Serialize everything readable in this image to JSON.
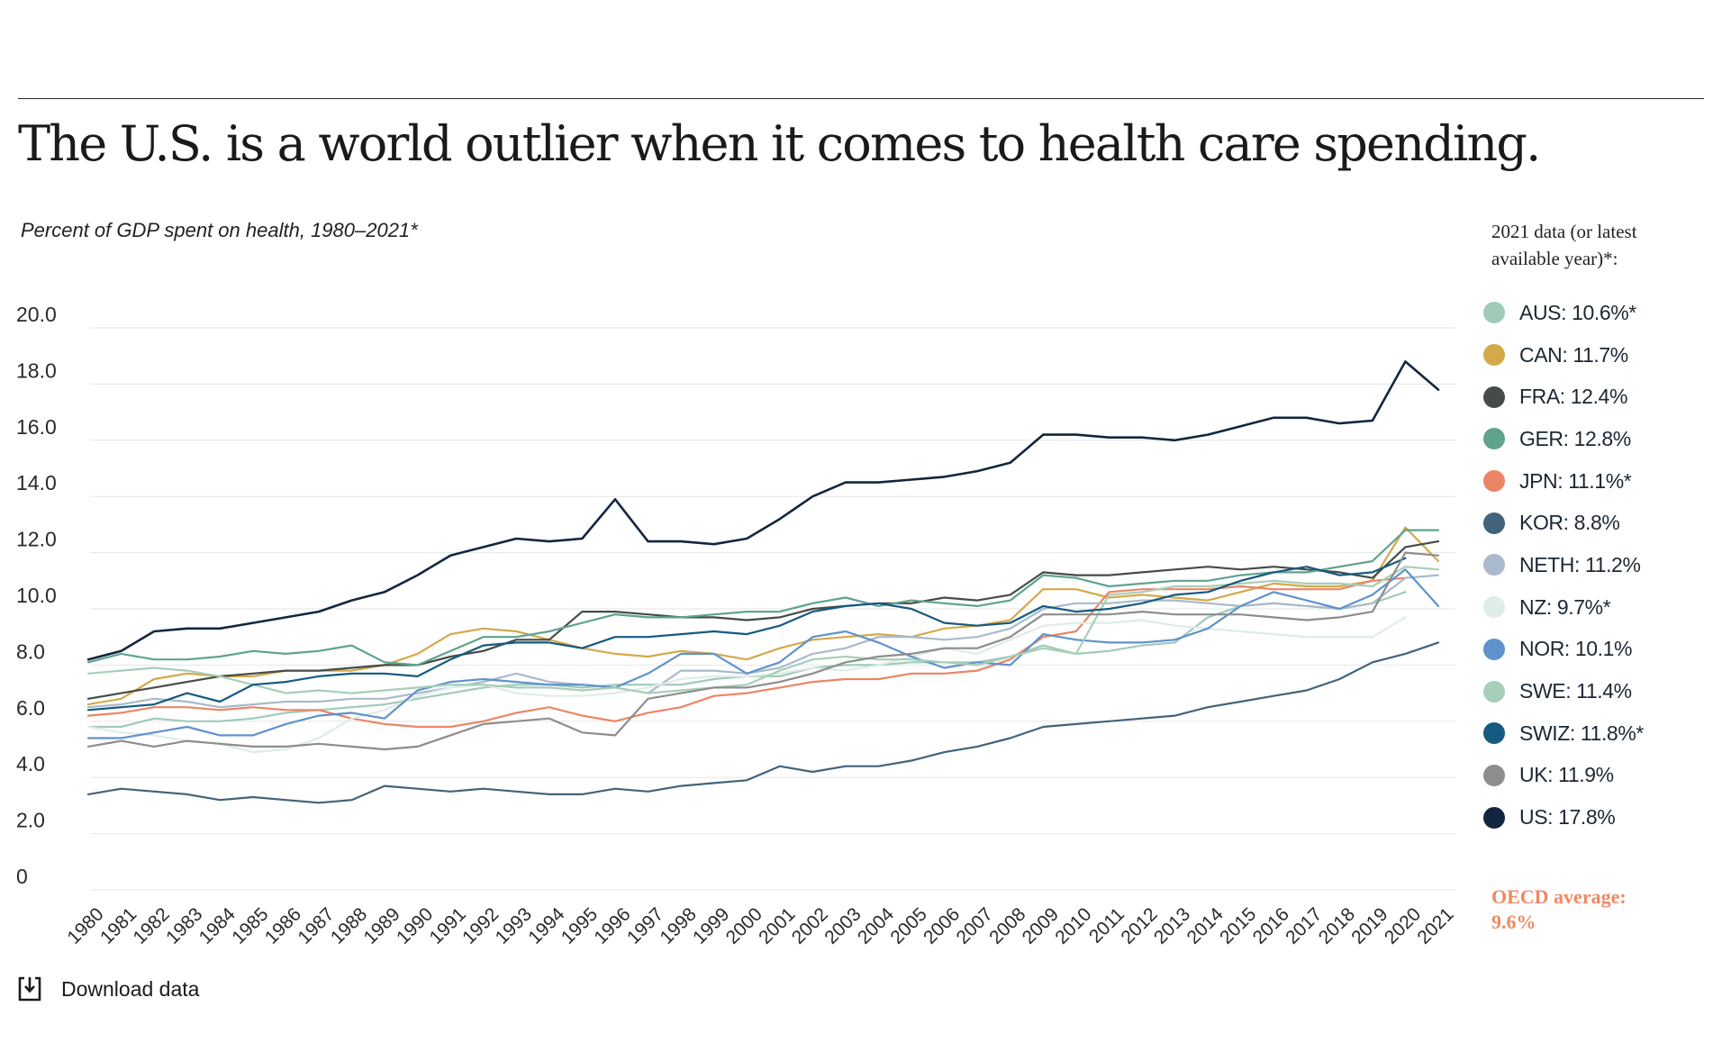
{
  "headline": "The U.S. is a world outlier when it comes to health care spending.",
  "subtitle": "Percent of GDP spent on health, 1980–2021*",
  "legend": {
    "title_line1": "2021 data (or latest",
    "title_line2": "available year)*:",
    "items": [
      {
        "label": "AUS: 10.6%*",
        "color": "#9fcbb8"
      },
      {
        "label": "CAN: 11.7%",
        "color": "#d4a94a"
      },
      {
        "label": "FRA: 12.4%",
        "color": "#454b48"
      },
      {
        "label": "GER: 12.8%",
        "color": "#5fa38e"
      },
      {
        "label": "JPN: 11.1%*",
        "color": "#ec8565"
      },
      {
        "label": "KOR: 8.8%",
        "color": "#42637a"
      },
      {
        "label": "NETH: 11.2%",
        "color": "#a8bacb"
      },
      {
        "label": "NZ: 9.7%*",
        "color": "#dfece7"
      },
      {
        "label": "NOR: 10.1%",
        "color": "#5f92cc"
      },
      {
        "label": "SWE: 11.4%",
        "color": "#a7ceb8"
      },
      {
        "label": "SWIZ: 11.8%*",
        "color": "#155a80"
      },
      {
        "label": "UK: 11.9%",
        "color": "#8d8d8d"
      },
      {
        "label": "US: 17.8%",
        "color": "#13263f"
      }
    ]
  },
  "oecd_note": {
    "line1": "OECD average:",
    "line2": "9.6%",
    "color": "#ee8a64"
  },
  "download": {
    "label": "Download data",
    "icon": "download-icon"
  },
  "chart_data": {
    "type": "line",
    "title": "The U.S. is a world outlier when it comes to health care spending.",
    "subtitle": "Percent of GDP spent on health, 1980–2021*",
    "xlabel": "",
    "ylabel": "",
    "ylim": [
      0,
      20
    ],
    "yticks": [
      0,
      2,
      4,
      6,
      8,
      10,
      12,
      14,
      16,
      18,
      20
    ],
    "ytick_labels": [
      "0",
      "2.0",
      "4.0",
      "6.0",
      "8.0",
      "10.0",
      "12.0",
      "14.0",
      "16.0",
      "18.0",
      "20.0"
    ],
    "grid": true,
    "legend_position": "right",
    "x": [
      "1980",
      "1981",
      "1982",
      "1983",
      "1984",
      "1985",
      "1986",
      "1987",
      "1988",
      "1989",
      "1990",
      "1991",
      "1992",
      "1993",
      "1994",
      "1995",
      "1996",
      "1997",
      "1998",
      "1999",
      "2000",
      "2001",
      "2002",
      "2003",
      "2004",
      "2005",
      "2006",
      "2007",
      "2008",
      "2009",
      "2010",
      "2011",
      "2012",
      "2013",
      "2014",
      "2015",
      "2016",
      "2017",
      "2018",
      "2019",
      "2020",
      "2021"
    ],
    "series": [
      {
        "name": "AUS",
        "color": "#9fcbb8",
        "values": [
          5.8,
          5.8,
          6.1,
          6.0,
          6.0,
          6.1,
          6.3,
          6.4,
          6.5,
          6.6,
          6.8,
          7.0,
          7.2,
          7.3,
          7.3,
          7.2,
          7.3,
          7.3,
          7.3,
          7.5,
          7.6,
          7.6,
          7.9,
          8.0,
          8.0,
          8.1,
          8.1,
          8.1,
          8.3,
          8.7,
          8.4,
          8.5,
          8.7,
          8.8,
          9.7,
          10.1,
          10.2,
          10.1,
          10.0,
          10.2,
          10.6,
          null
        ]
      },
      {
        "name": "CAN",
        "color": "#d4a94a",
        "values": [
          6.6,
          6.8,
          7.5,
          7.7,
          7.6,
          7.6,
          7.8,
          7.8,
          7.8,
          8.0,
          8.4,
          9.1,
          9.3,
          9.2,
          8.9,
          8.6,
          8.4,
          8.3,
          8.5,
          8.4,
          8.2,
          8.6,
          8.9,
          9.0,
          9.1,
          9.0,
          9.3,
          9.4,
          9.6,
          10.7,
          10.7,
          10.4,
          10.5,
          10.4,
          10.3,
          10.6,
          10.9,
          10.8,
          10.8,
          11.0,
          12.9,
          11.7
        ]
      },
      {
        "name": "FRA",
        "color": "#454b48",
        "values": [
          6.8,
          7.0,
          7.2,
          7.4,
          7.6,
          7.7,
          7.8,
          7.8,
          7.9,
          8.0,
          8.0,
          8.3,
          8.5,
          8.9,
          8.9,
          9.9,
          9.9,
          9.8,
          9.7,
          9.7,
          9.6,
          9.7,
          10.0,
          10.1,
          10.2,
          10.2,
          10.4,
          10.3,
          10.5,
          11.3,
          11.2,
          11.2,
          11.3,
          11.4,
          11.5,
          11.4,
          11.5,
          11.4,
          11.3,
          11.1,
          12.2,
          12.4
        ]
      },
      {
        "name": "GER",
        "color": "#5fa38e",
        "values": [
          8.1,
          8.4,
          8.2,
          8.2,
          8.3,
          8.5,
          8.4,
          8.5,
          8.7,
          8.1,
          8.0,
          8.5,
          9.0,
          9.0,
          9.2,
          9.5,
          9.8,
          9.7,
          9.7,
          9.8,
          9.9,
          9.9,
          10.2,
          10.4,
          10.1,
          10.3,
          10.2,
          10.1,
          10.3,
          11.2,
          11.1,
          10.8,
          10.9,
          11.0,
          11.0,
          11.2,
          11.3,
          11.3,
          11.5,
          11.7,
          12.8,
          12.8
        ]
      },
      {
        "name": "JPN",
        "color": "#ec8565",
        "values": [
          6.2,
          6.3,
          6.5,
          6.5,
          6.4,
          6.5,
          6.4,
          6.4,
          6.1,
          5.9,
          5.8,
          5.8,
          6.0,
          6.3,
          6.5,
          6.2,
          6.0,
          6.3,
          6.5,
          6.9,
          7.0,
          7.2,
          7.4,
          7.5,
          7.5,
          7.7,
          7.7,
          7.8,
          8.2,
          9.0,
          9.2,
          10.6,
          10.7,
          10.7,
          10.7,
          10.8,
          10.7,
          10.7,
          10.7,
          11.0,
          11.1,
          null
        ]
      },
      {
        "name": "KOR",
        "color": "#42637a",
        "values": [
          3.4,
          3.6,
          3.5,
          3.4,
          3.2,
          3.3,
          3.2,
          3.1,
          3.2,
          3.7,
          3.6,
          3.5,
          3.6,
          3.5,
          3.4,
          3.4,
          3.6,
          3.5,
          3.7,
          3.8,
          3.9,
          4.4,
          4.2,
          4.4,
          4.4,
          4.6,
          4.9,
          5.1,
          5.4,
          5.8,
          5.9,
          6.0,
          6.1,
          6.2,
          6.5,
          6.7,
          6.9,
          7.1,
          7.5,
          8.1,
          8.4,
          8.8
        ]
      },
      {
        "name": "NETH",
        "color": "#a8bacb",
        "values": [
          6.5,
          6.6,
          6.8,
          6.7,
          6.5,
          6.6,
          6.7,
          6.7,
          6.8,
          6.8,
          7.0,
          7.2,
          7.4,
          7.7,
          7.4,
          7.3,
          7.2,
          7.0,
          7.8,
          7.8,
          7.7,
          7.9,
          8.4,
          8.6,
          9.0,
          9.0,
          8.9,
          9.0,
          9.3,
          10.0,
          10.2,
          10.2,
          10.3,
          10.3,
          10.2,
          10.1,
          10.2,
          10.1,
          10.0,
          10.2,
          11.1,
          11.2
        ]
      },
      {
        "name": "NZ",
        "color": "#dfece7",
        "values": [
          5.8,
          5.6,
          5.5,
          5.3,
          5.2,
          4.9,
          5.0,
          5.4,
          6.1,
          6.4,
          6.9,
          7.2,
          7.3,
          7.0,
          6.9,
          6.9,
          7.0,
          7.2,
          7.5,
          7.6,
          7.6,
          7.7,
          7.9,
          7.8,
          8.0,
          8.3,
          8.6,
          8.4,
          8.9,
          9.4,
          9.5,
          9.5,
          9.6,
          9.4,
          9.3,
          9.2,
          9.1,
          9.0,
          9.0,
          9.0,
          9.7,
          null
        ]
      },
      {
        "name": "NOR",
        "color": "#5f92cc",
        "values": [
          5.4,
          5.4,
          5.6,
          5.8,
          5.5,
          5.5,
          5.9,
          6.2,
          6.3,
          6.1,
          7.1,
          7.4,
          7.5,
          7.4,
          7.3,
          7.3,
          7.2,
          7.7,
          8.4,
          8.4,
          7.7,
          8.1,
          9.0,
          9.2,
          8.8,
          8.3,
          7.9,
          8.1,
          8.0,
          9.1,
          8.9,
          8.8,
          8.8,
          8.9,
          9.3,
          10.1,
          10.6,
          10.3,
          10.0,
          10.5,
          11.4,
          10.1
        ]
      },
      {
        "name": "SWE",
        "color": "#a7ceb8",
        "values": [
          7.7,
          7.8,
          7.9,
          7.8,
          7.6,
          7.3,
          7.0,
          7.1,
          7.0,
          7.1,
          7.2,
          7.3,
          7.3,
          7.2,
          7.2,
          7.1,
          7.2,
          7.0,
          7.1,
          7.2,
          7.3,
          7.8,
          8.2,
          8.3,
          8.2,
          8.2,
          8.1,
          8.0,
          8.3,
          8.6,
          8.4,
          10.5,
          10.6,
          10.8,
          10.8,
          10.9,
          11.0,
          10.9,
          10.9,
          10.8,
          11.5,
          11.4
        ]
      },
      {
        "name": "SWIZ",
        "color": "#155a80",
        "values": [
          6.4,
          6.5,
          6.6,
          7.0,
          6.7,
          7.3,
          7.4,
          7.6,
          7.7,
          7.7,
          7.6,
          8.2,
          8.7,
          8.8,
          8.8,
          8.6,
          9.0,
          9.0,
          9.1,
          9.2,
          9.1,
          9.4,
          9.9,
          10.1,
          10.2,
          10.0,
          9.5,
          9.4,
          9.5,
          10.1,
          9.9,
          10.0,
          10.2,
          10.5,
          10.6,
          11.0,
          11.3,
          11.5,
          11.2,
          11.3,
          11.8,
          null
        ]
      },
      {
        "name": "UK",
        "color": "#8d8d8d",
        "values": [
          5.1,
          5.3,
          5.1,
          5.3,
          5.2,
          5.1,
          5.1,
          5.2,
          5.1,
          5.0,
          5.1,
          5.5,
          5.9,
          6.0,
          6.1,
          5.6,
          5.5,
          6.8,
          7.0,
          7.2,
          7.2,
          7.4,
          7.7,
          8.1,
          8.3,
          8.4,
          8.6,
          8.6,
          9.0,
          9.8,
          9.8,
          9.8,
          9.9,
          9.8,
          9.8,
          9.8,
          9.7,
          9.6,
          9.7,
          9.9,
          12.0,
          11.9
        ]
      },
      {
        "name": "US",
        "color": "#13263f",
        "values": [
          8.2,
          8.5,
          9.2,
          9.3,
          9.3,
          9.5,
          9.7,
          9.9,
          10.3,
          10.6,
          11.2,
          11.9,
          12.2,
          12.5,
          12.4,
          12.5,
          13.9,
          12.4,
          12.4,
          12.3,
          12.5,
          13.2,
          14.0,
          14.5,
          14.5,
          14.6,
          14.7,
          14.9,
          15.2,
          16.2,
          16.2,
          16.1,
          16.1,
          16.0,
          16.2,
          16.5,
          16.8,
          16.8,
          16.6,
          16.7,
          18.8,
          17.8
        ]
      }
    ]
  }
}
